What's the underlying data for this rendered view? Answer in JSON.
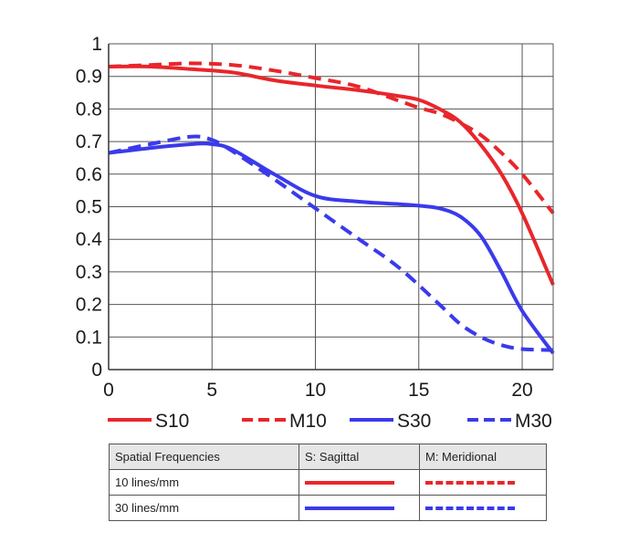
{
  "chart_data": {
    "type": "line",
    "title": "",
    "xlabel": "",
    "ylabel": "",
    "xlim": [
      0,
      21.5
    ],
    "ylim": [
      0,
      1
    ],
    "x_ticks": [
      "0",
      "5",
      "10",
      "15",
      "20"
    ],
    "x_tick_values": [
      0,
      5,
      10,
      15,
      20
    ],
    "y_ticks": [
      "0",
      "0.1",
      "0.2",
      "0.3",
      "0.4",
      "0.5",
      "0.6",
      "0.7",
      "0.8",
      "0.9",
      "1"
    ],
    "y_tick_values": [
      0,
      0.1,
      0.2,
      0.3,
      0.4,
      0.5,
      0.6,
      0.7,
      0.8,
      0.9,
      1
    ],
    "vertical_gridlines_at": [
      5,
      10,
      15,
      20
    ],
    "grid": "vertical",
    "legend_position": "bottom",
    "series": [
      {
        "name": "S10",
        "color": "#e8262b",
        "dash": "solid",
        "x": [
          0,
          2,
          4,
          6,
          8,
          10,
          12,
          14,
          15,
          16,
          17,
          18,
          19,
          20,
          21.5
        ],
        "y": [
          0.93,
          0.93,
          0.922,
          0.912,
          0.888,
          0.872,
          0.858,
          0.84,
          0.828,
          0.8,
          0.76,
          0.69,
          0.6,
          0.48,
          0.26
        ]
      },
      {
        "name": "M10",
        "color": "#e8262b",
        "dash": "dashed",
        "x": [
          0,
          2,
          4,
          6,
          8,
          10,
          12,
          14,
          15,
          16,
          17,
          18,
          19,
          20,
          21.5
        ],
        "y": [
          0.93,
          0.935,
          0.94,
          0.935,
          0.918,
          0.895,
          0.87,
          0.826,
          0.804,
          0.786,
          0.757,
          0.72,
          0.665,
          0.6,
          0.48
        ]
      },
      {
        "name": "S30",
        "color": "#3a3aec",
        "dash": "solid",
        "x": [
          0,
          2,
          4,
          5,
          6,
          8,
          10,
          12,
          14,
          15,
          16,
          17,
          18,
          19,
          20,
          21.5
        ],
        "y": [
          0.665,
          0.68,
          0.692,
          0.692,
          0.675,
          0.6,
          0.533,
          0.516,
          0.508,
          0.503,
          0.495,
          0.47,
          0.41,
          0.3,
          0.18,
          0.05
        ]
      },
      {
        "name": "M30",
        "color": "#3a3aec",
        "dash": "dashed",
        "x": [
          0,
          2,
          4,
          5,
          6,
          8,
          10,
          12,
          14,
          16,
          17,
          18,
          19,
          20,
          21.5
        ],
        "y": [
          0.665,
          0.692,
          0.715,
          0.705,
          0.67,
          0.585,
          0.495,
          0.405,
          0.315,
          0.2,
          0.14,
          0.1,
          0.075,
          0.063,
          0.06
        ]
      }
    ]
  },
  "legend": [
    {
      "label": "S10",
      "color": "#e8262b",
      "dash": "solid"
    },
    {
      "label": "M10",
      "color": "#e8262b",
      "dash": "dashed"
    },
    {
      "label": "S30",
      "color": "#3a3aec",
      "dash": "solid"
    },
    {
      "label": "M30",
      "color": "#3a3aec",
      "dash": "dashed"
    }
  ],
  "key_table": {
    "headers": [
      "Spatial Frequencies",
      "S: Sagittal",
      "M: Meridional"
    ],
    "rows": [
      {
        "label": "10 lines/mm",
        "color": "#e8262b"
      },
      {
        "label": "30 lines/mm",
        "color": "#3a3aec"
      }
    ]
  }
}
